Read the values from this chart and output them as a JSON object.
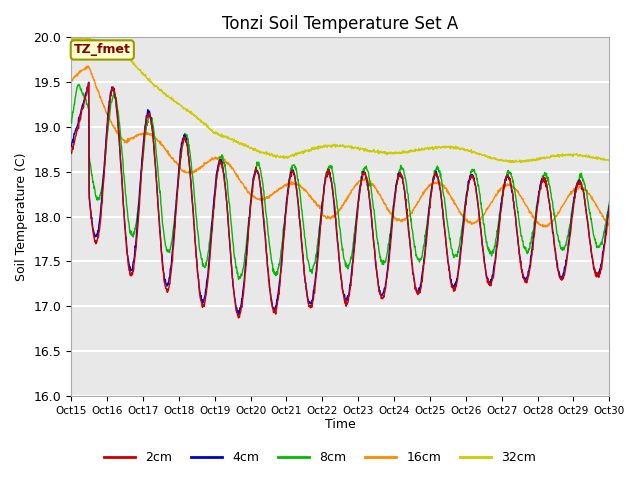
{
  "title": "Tonzi Soil Temperature Set A",
  "ylabel": "Soil Temperature (C)",
  "xlabel": "Time",
  "ylim": [
    16.0,
    20.0
  ],
  "yticks": [
    16.0,
    16.5,
    17.0,
    17.5,
    18.0,
    18.5,
    19.0,
    19.5,
    20.0
  ],
  "xtick_labels": [
    "Oct15",
    "Oct16",
    "Oct17",
    "Oct18",
    "Oct19",
    "Oct20",
    "Oct21",
    "Oct22",
    "Oct23",
    "Oct24",
    "Oct25",
    "Oct26",
    "Oct27",
    "Oct28",
    "Oct29",
    "Oct30"
  ],
  "legend_labels": [
    "2cm",
    "4cm",
    "8cm",
    "16cm",
    "32cm"
  ],
  "line_colors": [
    "#cc0000",
    "#0000cc",
    "#00bb00",
    "#ff8800",
    "#cccc00"
  ],
  "annotation_text": "TZ_fmet",
  "annotation_color": "#880000",
  "annotation_bg": "#ffffcc",
  "bg_color": "#e8e8e8",
  "fig_bg": "#ffffff",
  "title_fontsize": 12,
  "n_points": 1440,
  "days": 15
}
